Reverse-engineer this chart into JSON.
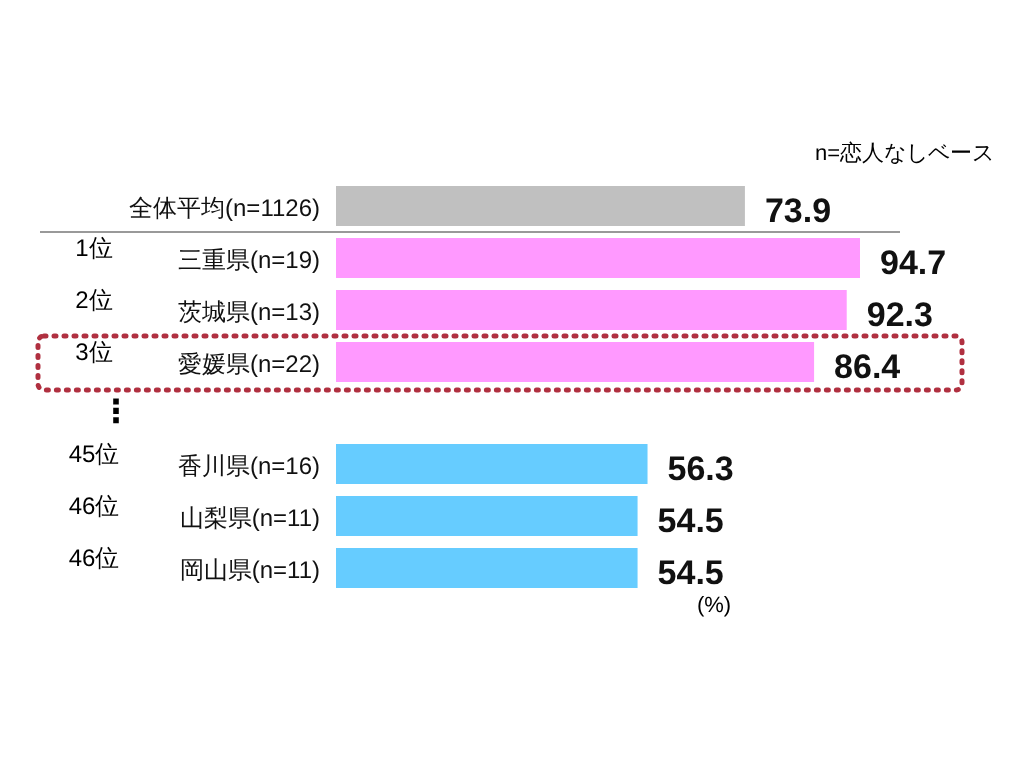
{
  "chart_data": {
    "type": "bar",
    "orientation": "horizontal",
    "data_labels": true,
    "categories": [
      "全体平均(n=1126)",
      "三重県(n=19)",
      "茨城県(n=13)",
      "愛媛県(n=22)",
      "香川県(n=16)",
      "山梨県(n=11)",
      "岡山県(n=11)"
    ],
    "values": [
      73.9,
      94.7,
      92.3,
      86.4,
      56.3,
      54.5,
      54.5
    ],
    "colors": [
      "#c0c0c0",
      "#ff99ff",
      "#ff99ff",
      "#ff99ff",
      "#66ccff",
      "#66ccff",
      "#66ccff"
    ],
    "annotations": [
      "n=恋人なしベース",
      "(%)",
      "⋮",
      "1位",
      "2位",
      "3位",
      "45位",
      "46位",
      "46位"
    ]
  }
}
